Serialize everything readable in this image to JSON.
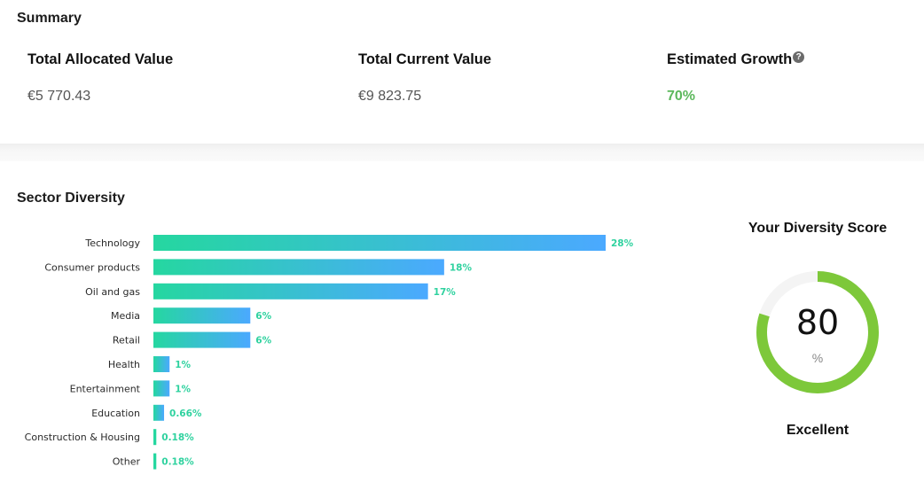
{
  "summary": {
    "title": "Summary",
    "total_allocated_label": "Total Allocated Value",
    "total_allocated_value": "€5 770.43",
    "total_current_label": "Total Current Value",
    "total_current_value": "€9 823.75",
    "growth_label": "Estimated Growth",
    "growth_help_icon": "question-circle-icon",
    "growth_value": "70%",
    "growth_color": "#5cb85c"
  },
  "sector": {
    "title": "Sector Diversity",
    "score_title": "Your Diversity Score",
    "score_value": "80",
    "score_unit": "%",
    "score_fraction": 0.8,
    "score_rating": "Excellent",
    "score_color": "#7dc83a"
  },
  "chart_data": {
    "type": "bar",
    "orientation": "horizontal",
    "categories": [
      "Technology",
      "Consumer products",
      "Oil and gas",
      "Media",
      "Retail",
      "Health",
      "Entertainment",
      "Education",
      "Construction & Housing",
      "Other"
    ],
    "values": [
      28,
      18,
      17,
      6,
      6,
      1,
      1,
      0.66,
      0.18,
      0.18
    ],
    "value_labels": [
      "28%",
      "18%",
      "17%",
      "6%",
      "6%",
      "1%",
      "1%",
      "0.66%",
      "0.18%",
      "0.18%"
    ],
    "gradient_start": "#25d7a0",
    "gradient_end": "#4ba9ff",
    "label_color": "#2fd29f"
  }
}
